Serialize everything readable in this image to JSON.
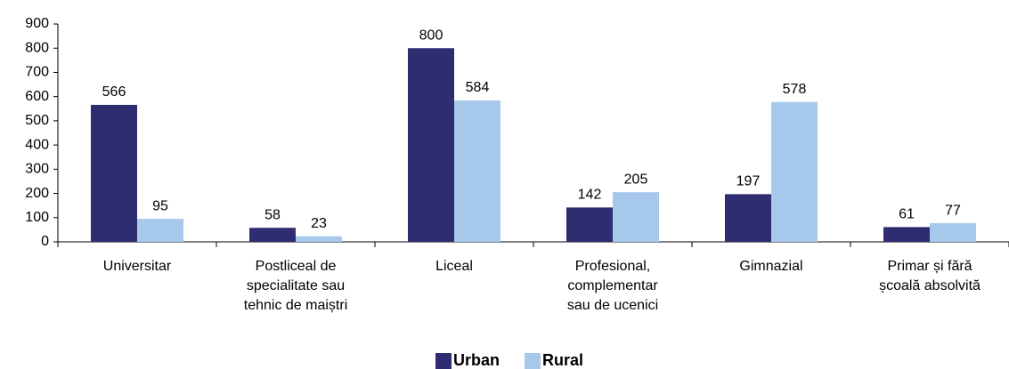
{
  "chart_data": {
    "type": "bar",
    "categories": [
      [
        "Universitar"
      ],
      [
        "Postliceal de",
        "specialitate sau",
        "tehnic de maiștri"
      ],
      [
        "Liceal"
      ],
      [
        "Profesional,",
        "complementar",
        "sau de ucenici"
      ],
      [
        "Gimnazial"
      ],
      [
        "Primar și fără",
        "școală absolvită"
      ]
    ],
    "series": [
      {
        "name": "Urban",
        "color": "#2e2d72",
        "values": [
          566,
          58,
          800,
          142,
          197,
          61
        ]
      },
      {
        "name": "Rural",
        "color": "#a6c8ea",
        "values": [
          95,
          23,
          584,
          205,
          578,
          77
        ]
      }
    ],
    "ylim": [
      0,
      900
    ],
    "yticks": [
      0,
      100,
      200,
      300,
      400,
      500,
      600,
      700,
      800,
      900
    ],
    "grid": false,
    "legend": "bottom"
  }
}
